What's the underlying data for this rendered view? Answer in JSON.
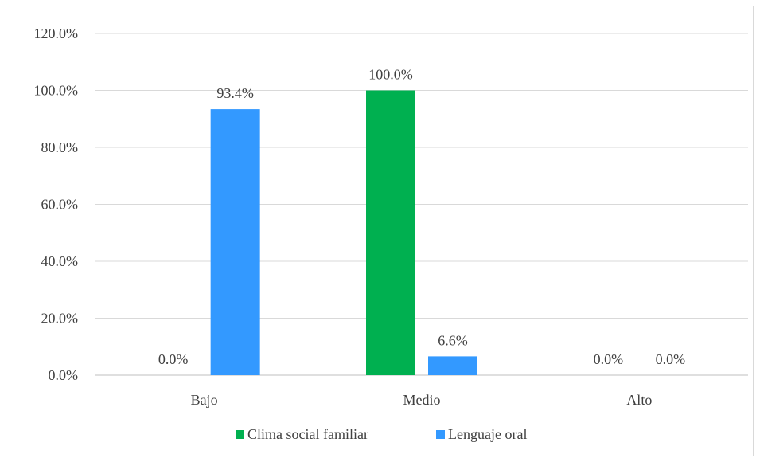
{
  "chart_data": {
    "type": "bar",
    "categories": [
      "Bajo",
      "Medio",
      "Alto"
    ],
    "series": [
      {
        "name": "Clima social familiar",
        "color": "#00b050",
        "values": [
          0.0,
          100.0,
          0.0
        ]
      },
      {
        "name": "Lenguaje oral",
        "color": "#3399ff",
        "values": [
          93.4,
          6.6,
          0.0
        ]
      }
    ],
    "yticks": [
      "0.0%",
      "20.0%",
      "40.0%",
      "60.0%",
      "80.0%",
      "100.0%",
      "120.0%"
    ],
    "data_labels": [
      [
        "0.0%",
        "100.0%",
        "0.0%"
      ],
      [
        "93.4%",
        "6.6%",
        "0.0%"
      ]
    ],
    "ylim": [
      0,
      120
    ],
    "grid": true,
    "legend_position": "bottom",
    "title": "",
    "xlabel": "",
    "ylabel": ""
  }
}
